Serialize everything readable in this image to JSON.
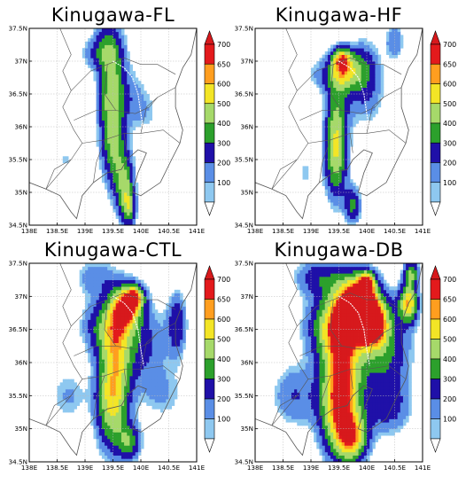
{
  "panels": [
    {
      "title": "Kinugawa-FL",
      "variant": "FL"
    },
    {
      "title": "Kinugawa-HF",
      "variant": "HF"
    },
    {
      "title": "Kinugawa-CTL",
      "variant": "CTL"
    },
    {
      "title": "Kinugawa-DB",
      "variant": "DB"
    }
  ],
  "lat_ticks": [
    "37.5N",
    "37N",
    "36.5N",
    "36N",
    "35.5N",
    "35N",
    "34.5N"
  ],
  "lon_ticks": [
    "138E",
    "138.5E",
    "139E",
    "139.5E",
    "140E",
    "140.5E",
    "141E"
  ],
  "colorbar": {
    "labels": [
      "700",
      "650",
      "600",
      "500",
      "400",
      "300",
      "200",
      "100"
    ],
    "colors": [
      "#d7191c",
      "#e31a1c",
      "#ff9e1f",
      "#f3e526",
      "#a6d96a",
      "#2ca02c",
      "#1f10a8",
      "#5a8ee6",
      "#8ec8f0"
    ]
  },
  "colors": {
    "water": "#9ecff5",
    "land": "#ffffff",
    "coast": "#555555",
    "grid": "#bbbbbb"
  }
}
